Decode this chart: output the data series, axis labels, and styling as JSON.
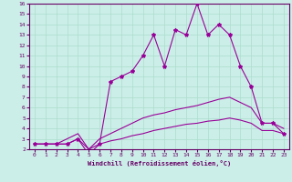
{
  "x": [
    0,
    1,
    2,
    3,
    4,
    5,
    6,
    7,
    8,
    9,
    10,
    11,
    12,
    13,
    14,
    15,
    16,
    17,
    18,
    19,
    20,
    21,
    22,
    23
  ],
  "line_main": [
    2.5,
    2.5,
    2.5,
    2.5,
    3.0,
    1.5,
    2.5,
    8.5,
    9.0,
    9.5,
    11.0,
    13.0,
    10.0,
    13.5,
    13.0,
    16.0,
    13.0,
    14.0,
    13.0,
    10.0,
    8.0,
    4.5,
    4.5,
    3.5
  ],
  "line_mid": [
    2.5,
    2.5,
    2.5,
    3.0,
    3.5,
    2.0,
    3.0,
    3.5,
    4.0,
    4.5,
    5.0,
    5.3,
    5.5,
    5.8,
    6.0,
    6.2,
    6.5,
    6.8,
    7.0,
    6.5,
    6.0,
    4.5,
    4.5,
    4.0
  ],
  "line_low": [
    2.5,
    2.5,
    2.5,
    2.5,
    3.0,
    2.0,
    2.5,
    2.8,
    3.0,
    3.3,
    3.5,
    3.8,
    4.0,
    4.2,
    4.4,
    4.5,
    4.7,
    4.8,
    5.0,
    4.8,
    4.5,
    3.8,
    3.8,
    3.5
  ],
  "background_color": "#cceee8",
  "grid_color": "#aaddcc",
  "line_color": "#990099",
  "xlim_min": 0,
  "xlim_max": 23,
  "ylim_min": 2,
  "ylim_max": 16,
  "yticks": [
    2,
    3,
    4,
    5,
    6,
    7,
    8,
    9,
    10,
    11,
    12,
    13,
    14,
    15,
    16
  ],
  "xticks": [
    0,
    1,
    2,
    3,
    4,
    5,
    6,
    7,
    8,
    9,
    10,
    11,
    12,
    13,
    14,
    15,
    16,
    17,
    18,
    19,
    20,
    21,
    22,
    23
  ],
  "xlabel": "Windchill (Refroidissement éolien,°C)"
}
